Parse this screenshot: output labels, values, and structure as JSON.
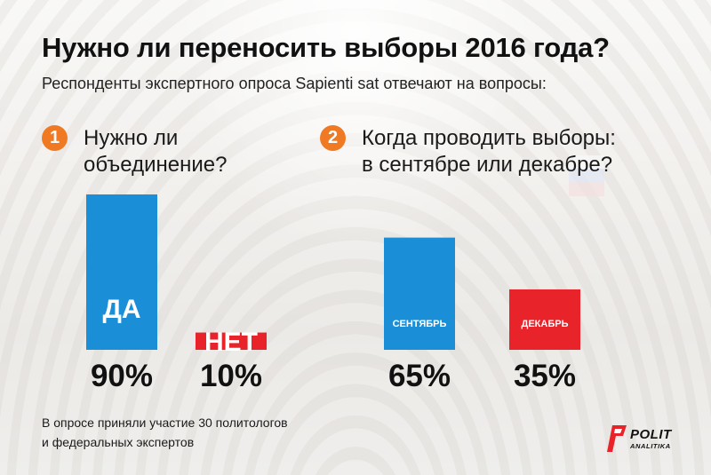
{
  "header": {
    "title": "Нужно ли переносить выборы 2016 года?",
    "subtitle": "Респонденты экспертного опроса Sapienti sat отвечают на вопросы:"
  },
  "questions": [
    {
      "number": "1",
      "line1": "Нужно ли",
      "line2": "объединение?"
    },
    {
      "number": "2",
      "line1": "Когда проводить выборы:",
      "line2": "в сентябре или декабре?"
    }
  ],
  "footer": {
    "note_line1": "В опросе приняли участие 30 политологов",
    "note_line2": "и федеральных экспертов"
  },
  "logo": {
    "word1": "POLIT",
    "word2": "ANALITIKA",
    "icon": "politanalitika-logo-icon"
  },
  "colors": {
    "blue": "#1a8fd8",
    "red": "#e8232a",
    "orange": "#ef7a23",
    "text": "#111111"
  },
  "chart_data": [
    {
      "type": "bar",
      "question": "Нужно ли объединение?",
      "categories": [
        "ДА",
        "НЕТ"
      ],
      "values": [
        90,
        10
      ],
      "labels": [
        "90%",
        "10%"
      ],
      "colors": [
        "#1a8fd8",
        "#e8232a"
      ],
      "ylim": [
        0,
        100
      ]
    },
    {
      "type": "bar",
      "question": "Когда проводить выборы: в сентябре или декабре?",
      "categories": [
        "СЕНТЯБРЬ",
        "ДЕКАБРЬ"
      ],
      "values": [
        65,
        35
      ],
      "labels": [
        "65%",
        "35%"
      ],
      "colors": [
        "#1a8fd8",
        "#e8232a"
      ],
      "ylim": [
        0,
        100
      ]
    }
  ]
}
